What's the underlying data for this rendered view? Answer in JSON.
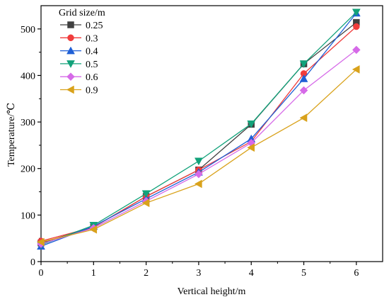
{
  "chart_data": {
    "type": "line",
    "xlabel": "Vertical height/m",
    "ylabel": "Temperature/℃",
    "x": [
      0,
      1,
      2,
      3,
      4,
      5,
      6
    ],
    "xlim": [
      0,
      6.5
    ],
    "ylim": [
      0,
      550
    ],
    "x_ticks": [
      0,
      1,
      2,
      3,
      4,
      5,
      6
    ],
    "y_ticks": [
      0,
      100,
      200,
      300,
      400,
      500
    ],
    "grid": false,
    "legend": {
      "title": "Grid size/m",
      "placement": "top-left"
    },
    "series": [
      {
        "name": "0.25",
        "color": "#404040",
        "marker": "square",
        "values": [
          40,
          74,
          140,
          197,
          295,
          425,
          514
        ]
      },
      {
        "name": "0.3",
        "color": "#f03c3c",
        "marker": "circle",
        "values": [
          44,
          74,
          140,
          197,
          258,
          404,
          505
        ]
      },
      {
        "name": "0.4",
        "color": "#1f5fd6",
        "marker": "triangle-up",
        "values": [
          33,
          76,
          135,
          192,
          264,
          393,
          534
        ]
      },
      {
        "name": "0.5",
        "color": "#12a27a",
        "marker": "triangle-down",
        "values": [
          36,
          78,
          146,
          216,
          296,
          425,
          536
        ]
      },
      {
        "name": "0.6",
        "color": "#d66ae8",
        "marker": "diamond",
        "values": [
          38,
          72,
          130,
          188,
          255,
          368,
          455
        ]
      },
      {
        "name": "0.9",
        "color": "#d9a21b",
        "marker": "triangle-left",
        "values": [
          42,
          69,
          126,
          167,
          245,
          309,
          413
        ]
      }
    ]
  }
}
